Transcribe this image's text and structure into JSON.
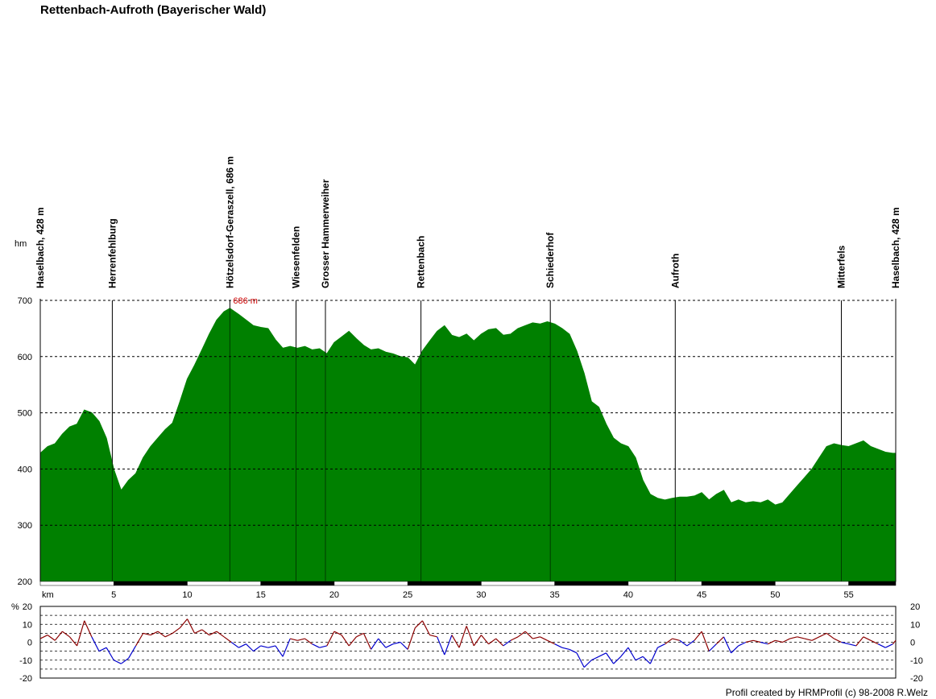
{
  "title": "Rettenbach-Aufroth (Bayerischer Wald)",
  "credit": "Profil created by HRMProfil (c) 98-2008 R.Welz",
  "chart_data": [
    {
      "type": "area",
      "ylabel": "hm",
      "xlabel": "km",
      "xlim": [
        0,
        58.2
      ],
      "ylim": [
        200,
        700
      ],
      "yticks": [
        200,
        300,
        400,
        500,
        600,
        700
      ],
      "xticks": [
        5,
        10,
        15,
        20,
        25,
        30,
        35,
        40,
        45,
        50,
        55
      ],
      "max_label": "686 m",
      "max_point": {
        "x": 12.9,
        "y": 686
      },
      "fill_color": "#008000",
      "grid": "dashed horizontal",
      "waypoints": [
        {
          "name": "Haselbach, 428 m",
          "km": 0
        },
        {
          "name": "Herrenfehlburg",
          "km": 4.9
        },
        {
          "name": "Hötzelsdorf-Geraszell, 686 m",
          "km": 12.9
        },
        {
          "name": "Wiesenfelden",
          "km": 17.4
        },
        {
          "name": "Grosser Hammerweiher",
          "km": 19.4
        },
        {
          "name": "Rettenbach",
          "km": 25.9
        },
        {
          "name": "Schiederhof",
          "km": 34.7
        },
        {
          "name": "Aufroth",
          "km": 43.2
        },
        {
          "name": "Mitterfels",
          "km": 54.5
        },
        {
          "name": "Haselbach, 428 m",
          "km": 58.2
        }
      ],
      "series": [
        {
          "name": "",
          "x": [
            0,
            0.5,
            1,
            1.5,
            2,
            2.5,
            3,
            3.5,
            4,
            4.5,
            5,
            5.5,
            6,
            6.5,
            7,
            7.5,
            8,
            8.5,
            9,
            9.5,
            10,
            10.5,
            11,
            11.5,
            12,
            12.5,
            12.9,
            13.5,
            14,
            14.5,
            15,
            15.5,
            16,
            16.5,
            17,
            17.5,
            18,
            18.5,
            19,
            19.5,
            20,
            20.5,
            21,
            21.5,
            22,
            22.5,
            23,
            23.5,
            24,
            24.5,
            25,
            25.5,
            26,
            26.5,
            27,
            27.5,
            28,
            28.5,
            29,
            29.5,
            30,
            30.5,
            31,
            31.5,
            32,
            32.5,
            33,
            33.5,
            34,
            34.5,
            35,
            35.5,
            36,
            36.5,
            37,
            37.5,
            38,
            38.5,
            39,
            39.5,
            40,
            40.5,
            41,
            41.5,
            42,
            42.5,
            43,
            43.5,
            44,
            44.5,
            45,
            45.5,
            46,
            46.5,
            47,
            47.5,
            48,
            48.5,
            49,
            49.5,
            50,
            50.5,
            51,
            51.5,
            52,
            52.5,
            53,
            53.5,
            54,
            54.5,
            55,
            55.5,
            56,
            56.5,
            57,
            57.5,
            58,
            58.2
          ],
          "values": [
            428,
            440,
            445,
            462,
            475,
            480,
            505,
            500,
            485,
            455,
            400,
            362,
            380,
            392,
            420,
            440,
            455,
            470,
            482,
            520,
            560,
            585,
            612,
            640,
            665,
            680,
            686,
            675,
            665,
            655,
            652,
            650,
            630,
            615,
            618,
            615,
            618,
            612,
            614,
            605,
            625,
            635,
            645,
            632,
            620,
            612,
            614,
            608,
            605,
            600,
            598,
            585,
            610,
            628,
            645,
            655,
            638,
            634,
            640,
            628,
            640,
            648,
            650,
            638,
            640,
            650,
            655,
            660,
            658,
            662,
            658,
            650,
            640,
            610,
            570,
            520,
            510,
            480,
            455,
            445,
            440,
            420,
            380,
            355,
            348,
            345,
            348,
            350,
            350,
            352,
            358,
            345,
            355,
            362,
            340,
            345,
            340,
            342,
            340,
            345,
            336,
            340,
            355,
            370,
            385,
            400,
            420,
            440,
            445,
            442,
            440,
            445,
            450,
            440,
            435,
            430,
            428,
            428
          ]
        }
      ]
    },
    {
      "type": "line",
      "ylabel": "%",
      "xlim": [
        0,
        58.2
      ],
      "ylim": [
        -20,
        20
      ],
      "yticks": [
        -20,
        -10,
        0,
        10,
        20
      ],
      "grid": "dashed horizontal",
      "positive_color": "#8b0000",
      "negative_color": "#0000cd",
      "series": [
        {
          "name": "",
          "x": [
            0,
            0.5,
            1,
            1.5,
            2,
            2.5,
            3,
            3.5,
            4,
            4.5,
            5,
            5.5,
            6,
            6.5,
            7,
            7.5,
            8,
            8.5,
            9,
            9.5,
            10,
            10.5,
            11,
            11.5,
            12,
            12.5,
            13,
            13.5,
            14,
            14.5,
            15,
            15.5,
            16,
            16.5,
            17,
            17.5,
            18,
            18.5,
            19,
            19.5,
            20,
            20.5,
            21,
            21.5,
            22,
            22.5,
            23,
            23.5,
            24,
            24.5,
            25,
            25.5,
            26,
            26.5,
            27,
            27.5,
            28,
            28.5,
            29,
            29.5,
            30,
            30.5,
            31,
            31.5,
            32,
            32.5,
            33,
            33.5,
            34,
            34.5,
            35,
            35.5,
            36,
            36.5,
            37,
            37.5,
            38,
            38.5,
            39,
            39.5,
            40,
            40.5,
            41,
            41.5,
            42,
            42.5,
            43,
            43.5,
            44,
            44.5,
            45,
            45.5,
            46,
            46.5,
            47,
            47.5,
            48,
            48.5,
            49,
            49.5,
            50,
            50.5,
            51,
            51.5,
            52,
            52.5,
            53,
            53.5,
            54,
            54.5,
            55,
            55.5,
            56,
            56.5,
            57,
            57.5,
            58,
            58.2
          ],
          "values": [
            2,
            4,
            1,
            6,
            3,
            -2,
            12,
            3,
            -5,
            -3,
            -10,
            -12,
            -9,
            -2,
            5,
            4,
            6,
            3,
            5,
            8,
            13,
            5,
            7,
            4,
            6,
            3,
            0,
            -3,
            -1,
            -5,
            -2,
            -3,
            -2,
            -8,
            2,
            1,
            2,
            -1,
            -3,
            -2,
            6,
            4,
            -2,
            3,
            5,
            -4,
            2,
            -3,
            -1,
            0,
            -4,
            8,
            12,
            4,
            3,
            -7,
            4,
            -3,
            9,
            -2,
            4,
            -1,
            2,
            -2,
            1,
            3,
            6,
            2,
            3,
            1,
            -1,
            -3,
            -4,
            -6,
            -14,
            -10,
            -8,
            -6,
            -12,
            -8,
            -3,
            -10,
            -8,
            -12,
            -3,
            -1,
            2,
            1,
            -2,
            1,
            6,
            -5,
            -1,
            3,
            -6,
            -2,
            0,
            1,
            0,
            -1,
            1,
            0,
            2,
            3,
            2,
            1,
            3,
            5,
            2,
            0,
            -1,
            -2,
            3,
            1,
            -1,
            -3,
            -1,
            1
          ]
        }
      ]
    }
  ]
}
